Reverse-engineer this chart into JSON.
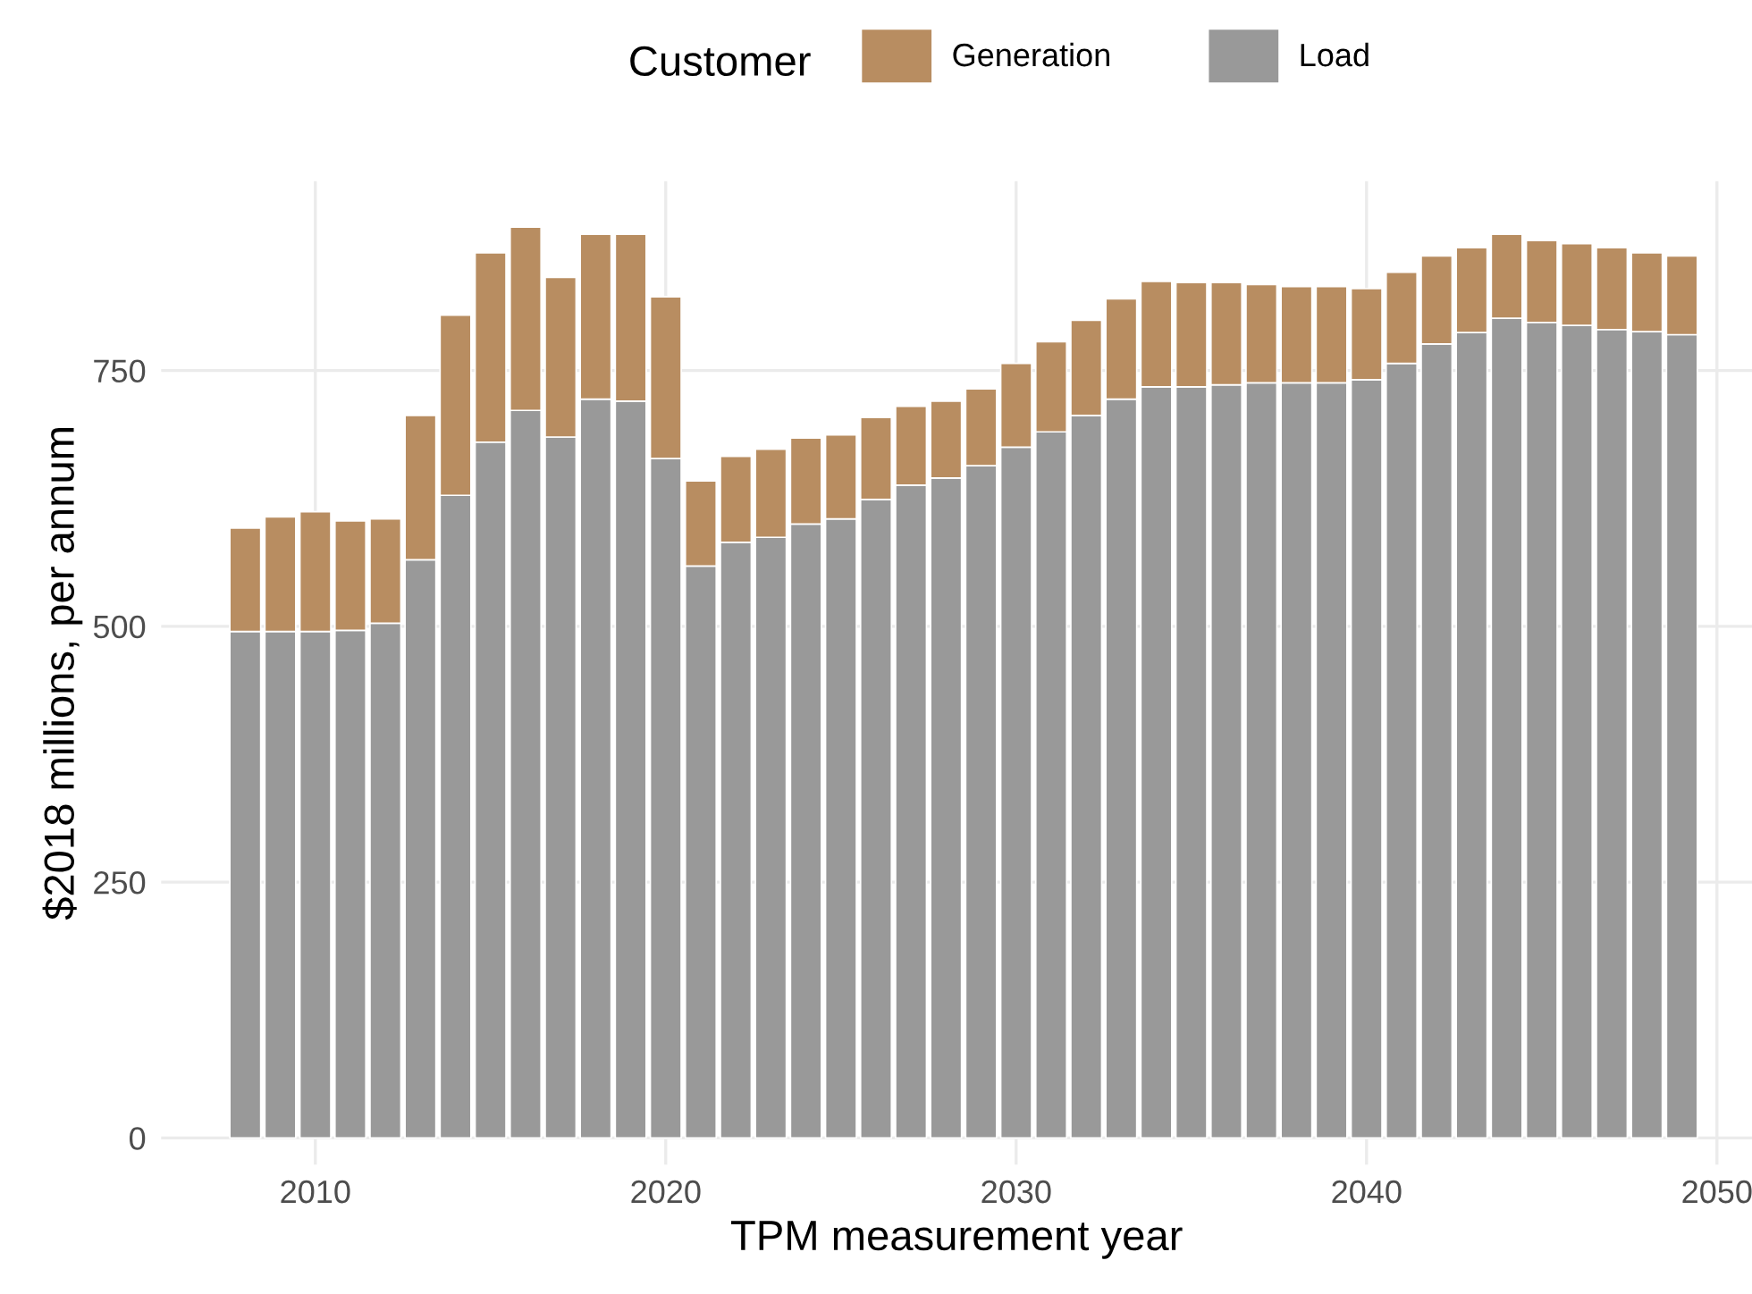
{
  "chart_data": {
    "type": "bar",
    "stacked": true,
    "xlabel": "TPM measurement year",
    "ylabel": "$2018 millions, per annum",
    "legend_title": "Customer",
    "legend": "top",
    "grid": true,
    "x": [
      2008,
      2009,
      2010,
      2011,
      2012,
      2013,
      2014,
      2015,
      2016,
      2017,
      2018,
      2019,
      2020,
      2021,
      2022,
      2023,
      2024,
      2025,
      2026,
      2027,
      2028,
      2029,
      2030,
      2031,
      2032,
      2033,
      2034,
      2035,
      2036,
      2037,
      2038,
      2039,
      2040,
      2041,
      2042,
      2043,
      2044,
      2045,
      2046,
      2047,
      2048,
      2049
    ],
    "series": [
      {
        "name": "Load",
        "color": "#999999",
        "values": [
          495,
          495,
          495,
          496,
          503,
          565,
          628,
          680,
          711,
          685,
          722,
          720,
          664,
          559,
          582,
          587,
          600,
          605,
          624,
          638,
          645,
          657,
          675,
          690,
          706,
          722,
          734,
          734,
          736,
          738,
          738,
          738,
          741,
          757,
          776,
          787,
          801,
          797,
          794,
          790,
          788,
          785
        ]
      },
      {
        "name": "Generation",
        "color": "#b88d61",
        "values": [
          101,
          112,
          117,
          107,
          102,
          141,
          176,
          185,
          179,
          156,
          161,
          163,
          158,
          83,
          84,
          86,
          84,
          82,
          80,
          77,
          75,
          75,
          82,
          88,
          93,
          98,
          103,
          102,
          100,
          96,
          94,
          94,
          89,
          89,
          86,
          83,
          82,
          80,
          80,
          80,
          77,
          77
        ]
      }
    ],
    "xlim": [
      2005.6,
      2051
    ],
    "xticks": [
      2010,
      2020,
      2030,
      2040,
      2050
    ],
    "ylim": [
      -26,
      935
    ],
    "yticks": [
      0,
      250,
      500,
      750
    ]
  }
}
